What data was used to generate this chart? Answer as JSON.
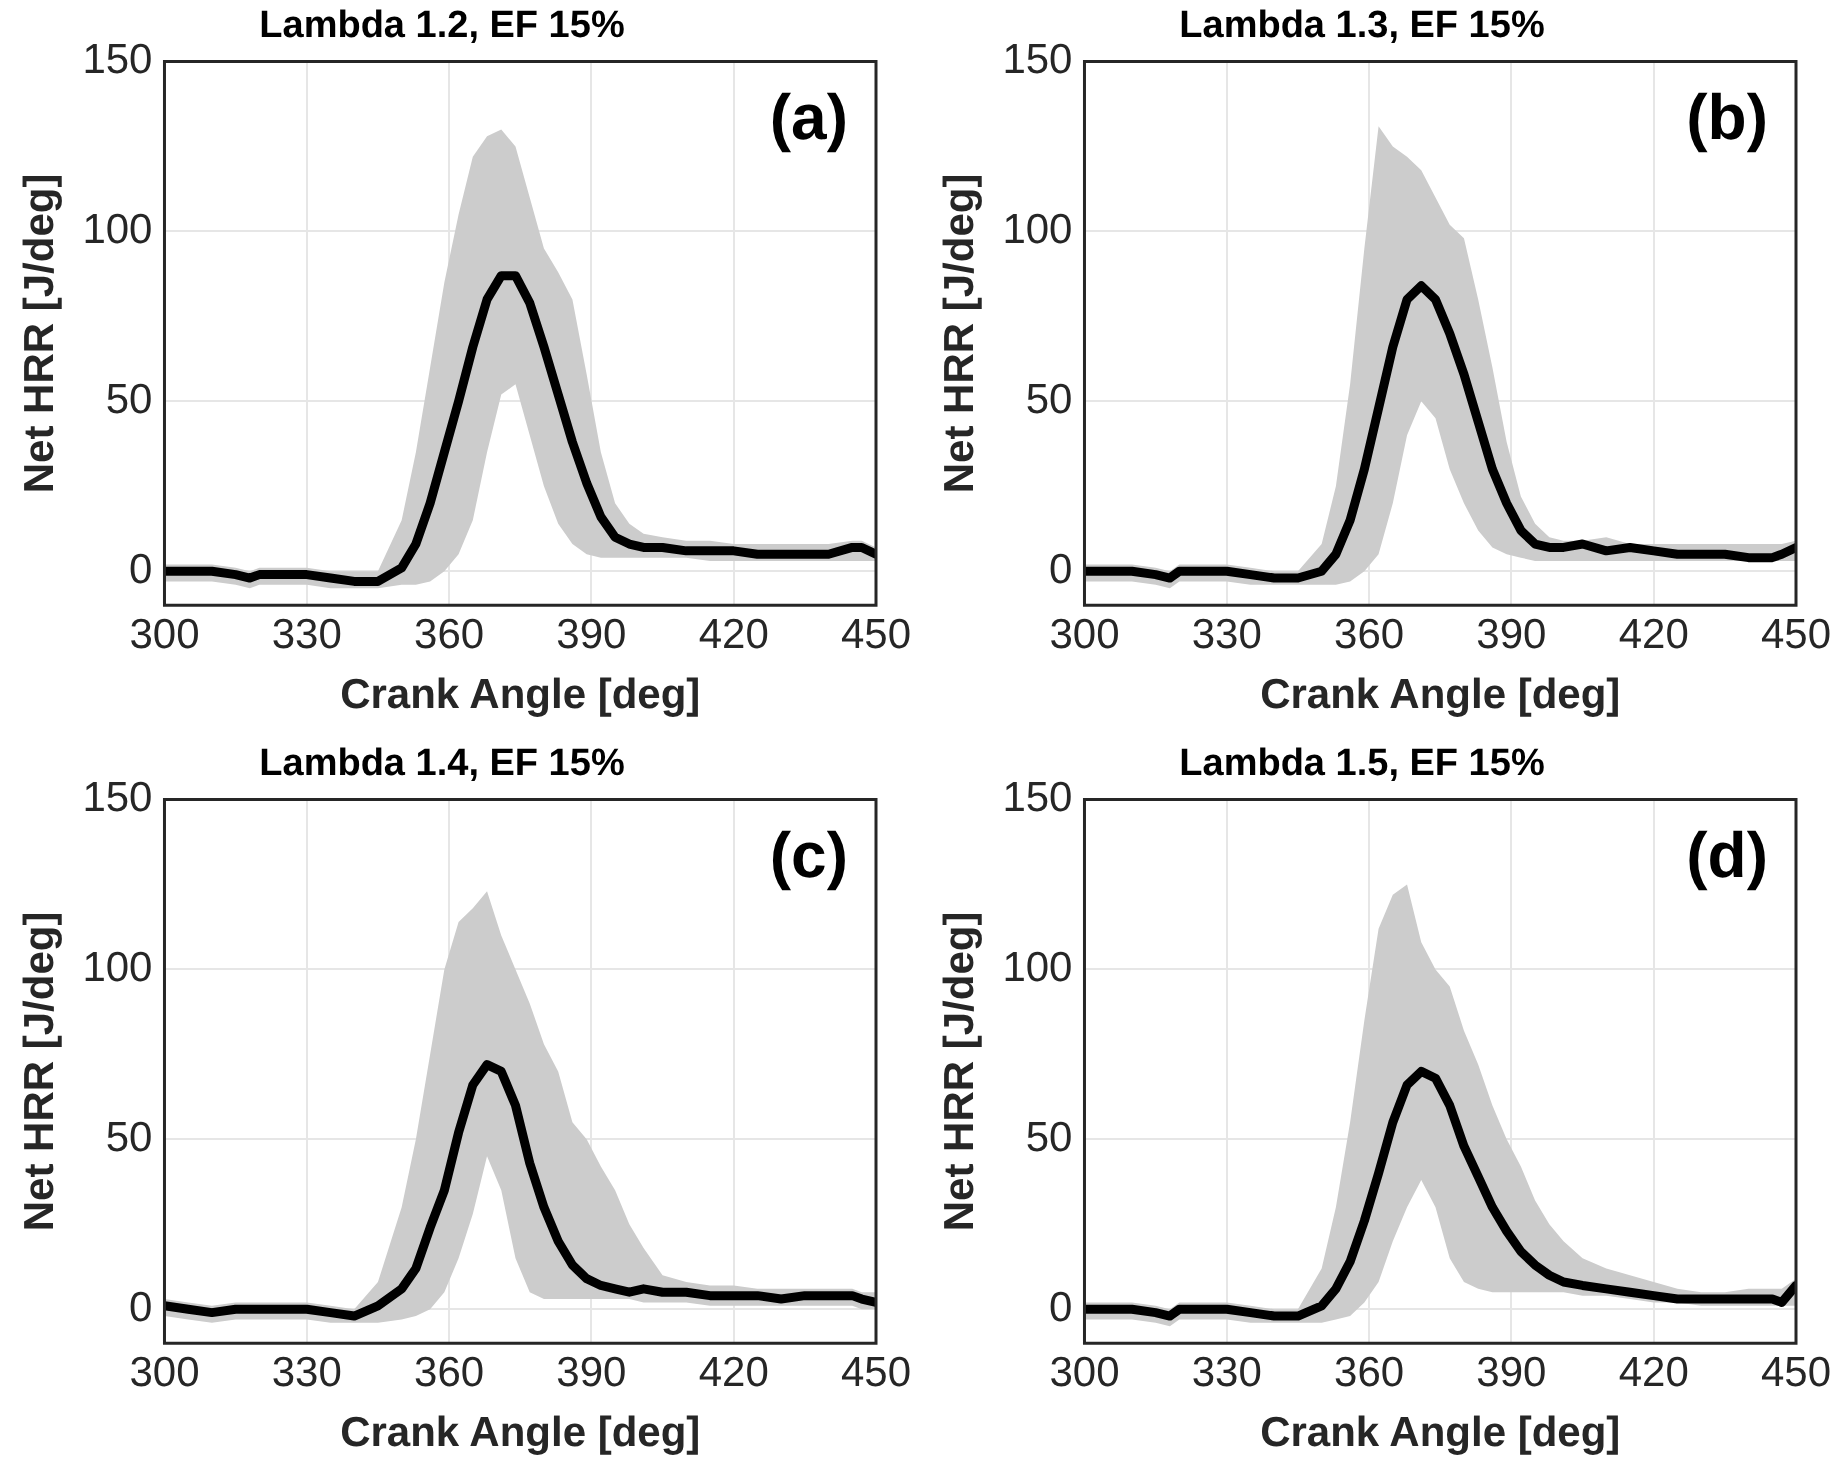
{
  "chart_data": [
    {
      "type": "line",
      "title": "Lambda 1.2, EF 15%",
      "xlabel": "Crank Angle [deg]",
      "ylabel": "Net HRR [J/deg]",
      "annotations": [
        "(a)"
      ],
      "xlim": [
        300,
        450
      ],
      "xticks": [
        300,
        330,
        360,
        390,
        420,
        450
      ],
      "ylim": [
        -10,
        150
      ],
      "yticks": [
        0,
        50,
        100,
        150
      ],
      "grid": true,
      "legend": false,
      "marker": "none",
      "line_style": "solid",
      "x": [
        300,
        305,
        310,
        315,
        318,
        320,
        325,
        330,
        335,
        340,
        345,
        350,
        353,
        356,
        359,
        362,
        365,
        368,
        371,
        374,
        377,
        380,
        383,
        386,
        389,
        392,
        395,
        398,
        401,
        405,
        410,
        415,
        420,
        425,
        430,
        435,
        440,
        445,
        447,
        450
      ],
      "series": [
        {
          "color": "#000000",
          "values": [
            0,
            0,
            0,
            -1,
            -2,
            -1,
            -1,
            -1,
            -2,
            -3,
            -3,
            1,
            8,
            20,
            35,
            50,
            66,
            80,
            87,
            87,
            79,
            66,
            52,
            38,
            26,
            16,
            10,
            8,
            7,
            7,
            6,
            6,
            6,
            5,
            5,
            5,
            5,
            7,
            7,
            5
          ],
          "lower": [
            -3,
            -3,
            -3,
            -4,
            -5,
            -4,
            -4,
            -4,
            -5,
            -5,
            -5,
            -4,
            -4,
            -3,
            0,
            5,
            15,
            35,
            52,
            55,
            40,
            25,
            14,
            8,
            5,
            4,
            4,
            4,
            4,
            4,
            4,
            3,
            3,
            3,
            3,
            3,
            3,
            3,
            3,
            3
          ],
          "upper": [
            2,
            2,
            2,
            1,
            0,
            1,
            1,
            1,
            0,
            0,
            0,
            15,
            35,
            60,
            85,
            105,
            122,
            128,
            130,
            125,
            110,
            95,
            88,
            80,
            58,
            35,
            20,
            14,
            11,
            10,
            9,
            9,
            8,
            8,
            8,
            8,
            8,
            9,
            9,
            7
          ]
        }
      ]
    },
    {
      "type": "line",
      "title": "Lambda 1.3, EF 15%",
      "xlabel": "Crank Angle [deg]",
      "ylabel": "Net HRR [J/deg]",
      "annotations": [
        "(b)"
      ],
      "xlim": [
        300,
        450
      ],
      "xticks": [
        300,
        330,
        360,
        390,
        420,
        450
      ],
      "ylim": [
        -10,
        150
      ],
      "yticks": [
        0,
        50,
        100,
        150
      ],
      "grid": true,
      "legend": false,
      "marker": "none",
      "line_style": "solid",
      "x": [
        300,
        305,
        310,
        315,
        318,
        320,
        325,
        330,
        335,
        340,
        345,
        350,
        353,
        356,
        359,
        362,
        365,
        368,
        371,
        374,
        377,
        380,
        383,
        386,
        389,
        392,
        395,
        398,
        401,
        405,
        410,
        415,
        420,
        425,
        430,
        435,
        440,
        445,
        447,
        450
      ],
      "series": [
        {
          "color": "#000000",
          "values": [
            0,
            0,
            0,
            -1,
            -2,
            0,
            0,
            0,
            -1,
            -2,
            -2,
            0,
            5,
            15,
            30,
            48,
            66,
            80,
            84,
            80,
            70,
            58,
            44,
            30,
            20,
            12,
            8,
            7,
            7,
            8,
            6,
            7,
            6,
            5,
            5,
            5,
            4,
            4,
            5,
            7
          ],
          "lower": [
            -3,
            -3,
            -3,
            -4,
            -5,
            -3,
            -3,
            -3,
            -4,
            -4,
            -4,
            -4,
            -4,
            -3,
            0,
            5,
            20,
            40,
            50,
            45,
            30,
            20,
            12,
            7,
            5,
            4,
            3,
            3,
            3,
            3,
            3,
            3,
            3,
            3,
            3,
            3,
            3,
            3,
            3,
            3
          ],
          "upper": [
            2,
            2,
            2,
            1,
            0,
            2,
            2,
            2,
            1,
            0,
            0,
            8,
            25,
            55,
            95,
            131,
            125,
            122,
            118,
            110,
            102,
            98,
            80,
            60,
            38,
            22,
            14,
            10,
            9,
            9,
            10,
            8,
            8,
            8,
            8,
            8,
            8,
            8,
            8,
            9
          ]
        }
      ]
    },
    {
      "type": "line",
      "title": "Lambda 1.4, EF 15%",
      "xlabel": "Crank Angle [deg]",
      "ylabel": "Net HRR [J/deg]",
      "annotations": [
        "(c)"
      ],
      "xlim": [
        300,
        450
      ],
      "xticks": [
        300,
        330,
        360,
        390,
        420,
        450
      ],
      "ylim": [
        -10,
        150
      ],
      "yticks": [
        0,
        50,
        100,
        150
      ],
      "grid": true,
      "legend": false,
      "marker": "none",
      "line_style": "solid",
      "x": [
        300,
        305,
        310,
        315,
        318,
        320,
        325,
        330,
        335,
        340,
        345,
        350,
        353,
        356,
        359,
        362,
        365,
        368,
        371,
        374,
        377,
        380,
        383,
        386,
        389,
        392,
        395,
        398,
        401,
        405,
        410,
        415,
        420,
        425,
        430,
        435,
        440,
        445,
        447,
        450
      ],
      "series": [
        {
          "color": "#000000",
          "values": [
            1,
            0,
            -1,
            0,
            0,
            0,
            0,
            0,
            -1,
            -2,
            1,
            6,
            12,
            24,
            35,
            52,
            66,
            72,
            70,
            60,
            43,
            30,
            20,
            13,
            9,
            7,
            6,
            5,
            6,
            5,
            5,
            4,
            4,
            4,
            3,
            4,
            4,
            4,
            3,
            2
          ],
          "lower": [
            -2,
            -3,
            -4,
            -3,
            -3,
            -3,
            -3,
            -3,
            -4,
            -4,
            -4,
            -3,
            -2,
            0,
            5,
            15,
            28,
            45,
            35,
            15,
            5,
            3,
            3,
            3,
            3,
            3,
            3,
            3,
            2,
            2,
            2,
            1,
            1,
            1,
            1,
            1,
            1,
            1,
            0,
            0
          ],
          "upper": [
            3,
            2,
            1,
            2,
            2,
            2,
            2,
            2,
            1,
            0,
            8,
            30,
            50,
            75,
            100,
            114,
            118,
            123,
            110,
            100,
            90,
            78,
            70,
            55,
            50,
            42,
            35,
            25,
            18,
            10,
            8,
            7,
            7,
            6,
            6,
            6,
            6,
            6,
            5,
            5
          ]
        }
      ]
    },
    {
      "type": "line",
      "title": "Lambda 1.5, EF 15%",
      "xlabel": "Crank Angle [deg]",
      "ylabel": "Net HRR [J/deg]",
      "annotations": [
        "(d)"
      ],
      "xlim": [
        300,
        450
      ],
      "xticks": [
        300,
        330,
        360,
        390,
        420,
        450
      ],
      "ylim": [
        -10,
        150
      ],
      "yticks": [
        0,
        50,
        100,
        150
      ],
      "grid": true,
      "legend": false,
      "marker": "none",
      "line_style": "solid",
      "x": [
        300,
        305,
        310,
        315,
        318,
        320,
        325,
        330,
        335,
        340,
        345,
        350,
        353,
        356,
        359,
        362,
        365,
        368,
        371,
        374,
        377,
        380,
        383,
        386,
        389,
        392,
        395,
        398,
        401,
        405,
        410,
        415,
        420,
        425,
        430,
        435,
        440,
        445,
        447,
        450
      ],
      "series": [
        {
          "color": "#000000",
          "values": [
            0,
            0,
            0,
            -1,
            -2,
            0,
            0,
            0,
            -1,
            -2,
            -2,
            1,
            6,
            14,
            26,
            40,
            55,
            66,
            70,
            68,
            60,
            48,
            39,
            30,
            23,
            17,
            13,
            10,
            8,
            7,
            6,
            5,
            4,
            3,
            3,
            3,
            3,
            3,
            2,
            7
          ],
          "lower": [
            -3,
            -3,
            -3,
            -4,
            -5,
            -3,
            -3,
            -3,
            -4,
            -4,
            -4,
            -4,
            -3,
            -2,
            2,
            8,
            20,
            30,
            38,
            30,
            15,
            8,
            6,
            5,
            5,
            5,
            5,
            5,
            5,
            4,
            4,
            3,
            2,
            2,
            1,
            1,
            1,
            1,
            1,
            1
          ],
          "upper": [
            2,
            2,
            2,
            1,
            0,
            2,
            2,
            2,
            1,
            0,
            0,
            12,
            30,
            55,
            85,
            112,
            122,
            125,
            108,
            100,
            95,
            82,
            72,
            60,
            50,
            42,
            32,
            25,
            20,
            15,
            12,
            10,
            8,
            6,
            5,
            5,
            6,
            6,
            6,
            9
          ]
        }
      ]
    }
  ]
}
